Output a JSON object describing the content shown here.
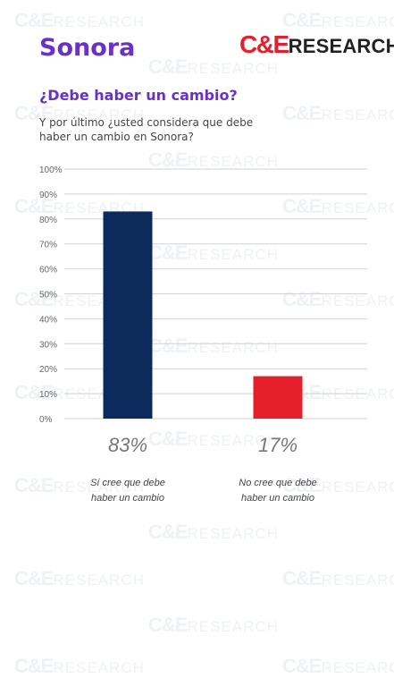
{
  "header": {
    "title": "Sonora",
    "logo_brand": "C&E",
    "logo_word": "RESEARCH"
  },
  "watermark": {
    "brand": "C&E",
    "word": "RESEARCH"
  },
  "question": {
    "heading": "¿Debe haber un cambio?",
    "text": "Y por último ¿usted considera que debe haber un cambio en Sonora?"
  },
  "colors": {
    "accent": "#6a31c9",
    "logo_red": "#e3202b",
    "bar_yes": "#0d2a5c",
    "bar_no": "#e3202b"
  },
  "chart_data": {
    "type": "bar",
    "categories": [
      "Sí cree que debe haber un cambio",
      "No cree que debe haber un cambio"
    ],
    "category_lines": [
      [
        "Sí cree que debe",
        "haber un cambio"
      ],
      [
        "No cree que debe",
        "haber un cambio"
      ]
    ],
    "values": [
      83,
      17
    ],
    "value_labels": [
      "83%",
      "17%"
    ],
    "bar_colors": [
      "#0d2a5c",
      "#e3202b"
    ],
    "yticks": [
      0,
      10,
      20,
      30,
      40,
      50,
      60,
      70,
      80,
      90,
      100
    ],
    "ytick_labels": [
      "0%",
      "10%",
      "20%",
      "30%",
      "40%",
      "50%",
      "60%",
      "70%",
      "80%",
      "90%",
      "100%"
    ],
    "ylim": [
      0,
      100
    ],
    "grid": true,
    "title": "",
    "xlabel": "",
    "ylabel": ""
  }
}
